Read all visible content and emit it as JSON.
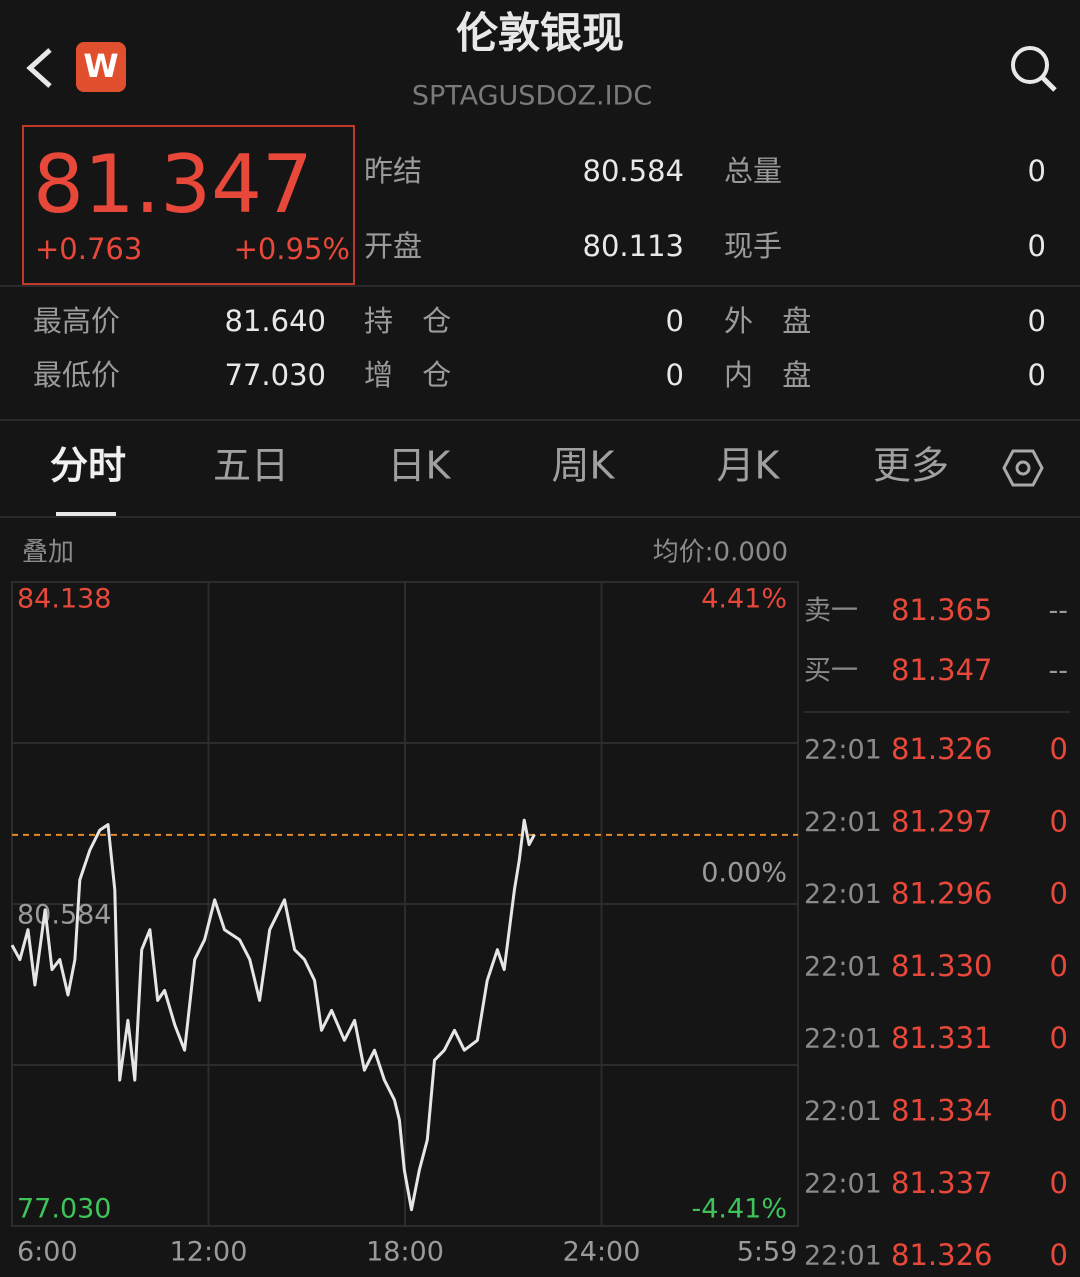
{
  "header": {
    "logo": "W",
    "title": "伦敦银现",
    "code": "SPTAGUSDOZ.IDC"
  },
  "quote": {
    "price": 81.347,
    "change": "+0.763",
    "change_pct": "+0.95%"
  },
  "stats": [
    {
      "label": "昨结",
      "value": "80.584"
    },
    {
      "label": "总量",
      "value": "0"
    },
    {
      "label": "开盘",
      "value": "80.113"
    },
    {
      "label": "现手",
      "value": "0"
    },
    {
      "label": "最高价",
      "value": "81.640"
    },
    {
      "label": "持 仓",
      "value": "0"
    },
    {
      "label": "外 盘",
      "value": "0"
    },
    {
      "label": "最低价",
      "value": "77.030"
    },
    {
      "label": "增 仓",
      "value": "0"
    },
    {
      "label": "内 盘",
      "value": "0"
    }
  ],
  "tabs": [
    "分时",
    "五日",
    "日K",
    "周K",
    "月K",
    "更多"
  ],
  "chart_header": {
    "overlay": "叠加",
    "avg_price": "均价:0.000"
  },
  "chart_data": {
    "type": "line",
    "x": [
      0,
      0.24,
      0.49,
      0.7,
      1.01,
      1.22,
      1.46,
      1.71,
      1.92,
      2.07,
      2.38,
      2.68,
      2.93,
      3.14,
      3.29,
      3.54,
      3.75,
      3.96,
      4.21,
      4.45,
      4.66,
      4.97,
      5.27,
      5.58,
      5.88,
      6.19,
      6.49,
      6.95,
      7.26,
      7.56,
      7.87,
      8.32,
      8.63,
      8.93,
      9.24,
      9.45,
      9.76,
      10.15,
      10.46,
      10.76,
      11.07,
      11.37,
      11.68,
      11.83,
      11.98,
      12.2,
      12.44,
      12.68,
      12.9,
      13.2,
      13.51,
      13.81,
      14.21,
      14.51,
      14.82,
      15.03,
      15.34,
      15.49,
      15.64,
      15.79,
      15.95
    ],
    "series": [
      {
        "color": "#e6e6e6",
        "values": [
          80.13,
          79.97,
          80.3,
          79.69,
          80.52,
          79.86,
          79.97,
          79.58,
          79.97,
          80.85,
          81.18,
          81.4,
          81.46,
          80.74,
          78.64,
          79.3,
          78.64,
          80.08,
          80.3,
          79.52,
          79.63,
          79.25,
          78.97,
          79.97,
          80.19,
          80.63,
          80.3,
          80.19,
          79.97,
          79.52,
          80.3,
          80.63,
          80.08,
          79.97,
          79.74,
          79.19,
          79.41,
          79.08,
          79.3,
          78.75,
          78.97,
          78.64,
          78.42,
          78.2,
          77.65,
          77.21,
          77.65,
          77.98,
          78.86,
          78.97,
          79.19,
          78.97,
          79.08,
          79.74,
          80.08,
          79.86,
          80.74,
          81.07,
          81.51,
          81.24,
          81.35
        ]
      }
    ],
    "xlim": [
      0,
      24
    ],
    "xticks": [
      {
        "value": 0,
        "label": "6:00"
      },
      {
        "value": 6,
        "label": "12:00"
      },
      {
        "value": 12,
        "label": "18:00"
      },
      {
        "value": 18,
        "label": "24:00"
      },
      {
        "value": 23.98,
        "label": "5:59"
      }
    ],
    "ylim": [
      77.03,
      84.138
    ],
    "yticks": [
      84.138,
      80.584,
      {
        "value": 77.03,
        "label": "77.030"
      }
    ],
    "y2lim": [
      -4.41,
      4.41
    ],
    "y2ticks": [
      {
        "value": 4.41,
        "label": "4.41%"
      },
      {
        "value": 0,
        "label": "0.00%"
      },
      {
        "value": -4.41,
        "label": "-4.41%"
      }
    ],
    "grid": true
  },
  "order_book": {
    "asks": [
      {
        "label": "卖一",
        "price": "81.365",
        "volume": "--"
      }
    ],
    "bids": [
      {
        "label": "买一",
        "price": "81.347",
        "volume": "--"
      }
    ]
  },
  "trades": [
    {
      "time": "22:01",
      "price": "81.326",
      "volume": "0"
    },
    {
      "time": "22:01",
      "price": "81.297",
      "volume": "0"
    },
    {
      "time": "22:01",
      "price": "81.296",
      "volume": "0"
    },
    {
      "time": "22:01",
      "price": "81.330",
      "volume": "0"
    },
    {
      "time": "22:01",
      "price": "81.331",
      "volume": "0"
    },
    {
      "time": "22:01",
      "price": "81.334",
      "volume": "0"
    },
    {
      "time": "22:01",
      "price": "81.337",
      "volume": "0"
    },
    {
      "time": "22:01",
      "price": "81.326",
      "volume": "0"
    }
  ]
}
